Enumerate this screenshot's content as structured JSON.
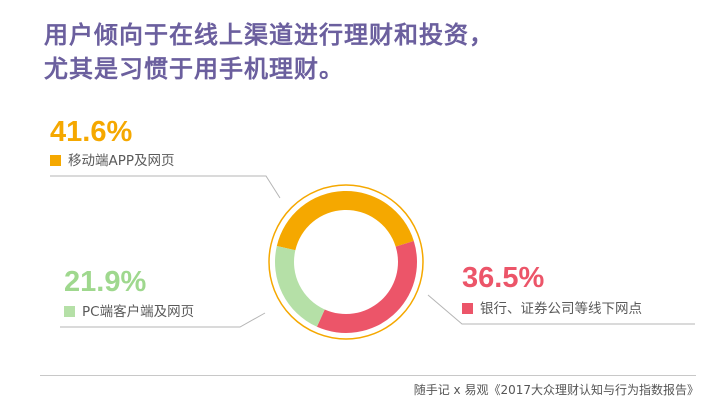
{
  "headline_line1": "用户倾向于在线上渠道进行理财和投资，",
  "headline_line2": "尤其是习惯于用手机理财。",
  "source": "随手记 x 易观《2017大众理财认知与行为指数报告》",
  "chart_data": {
    "type": "pie",
    "donut": true,
    "slices": [
      {
        "label": "移动端APP及网页",
        "value": 41.6,
        "display": "41.6%",
        "color": "#f5a800"
      },
      {
        "label": "银行、证券公司等线下网点",
        "value": 36.5,
        "display": "36.5%",
        "color": "#ec5569"
      },
      {
        "label": "PC端客户端及网页",
        "value": 21.9,
        "display": "21.9%",
        "color": "#b5e0a7"
      }
    ]
  }
}
